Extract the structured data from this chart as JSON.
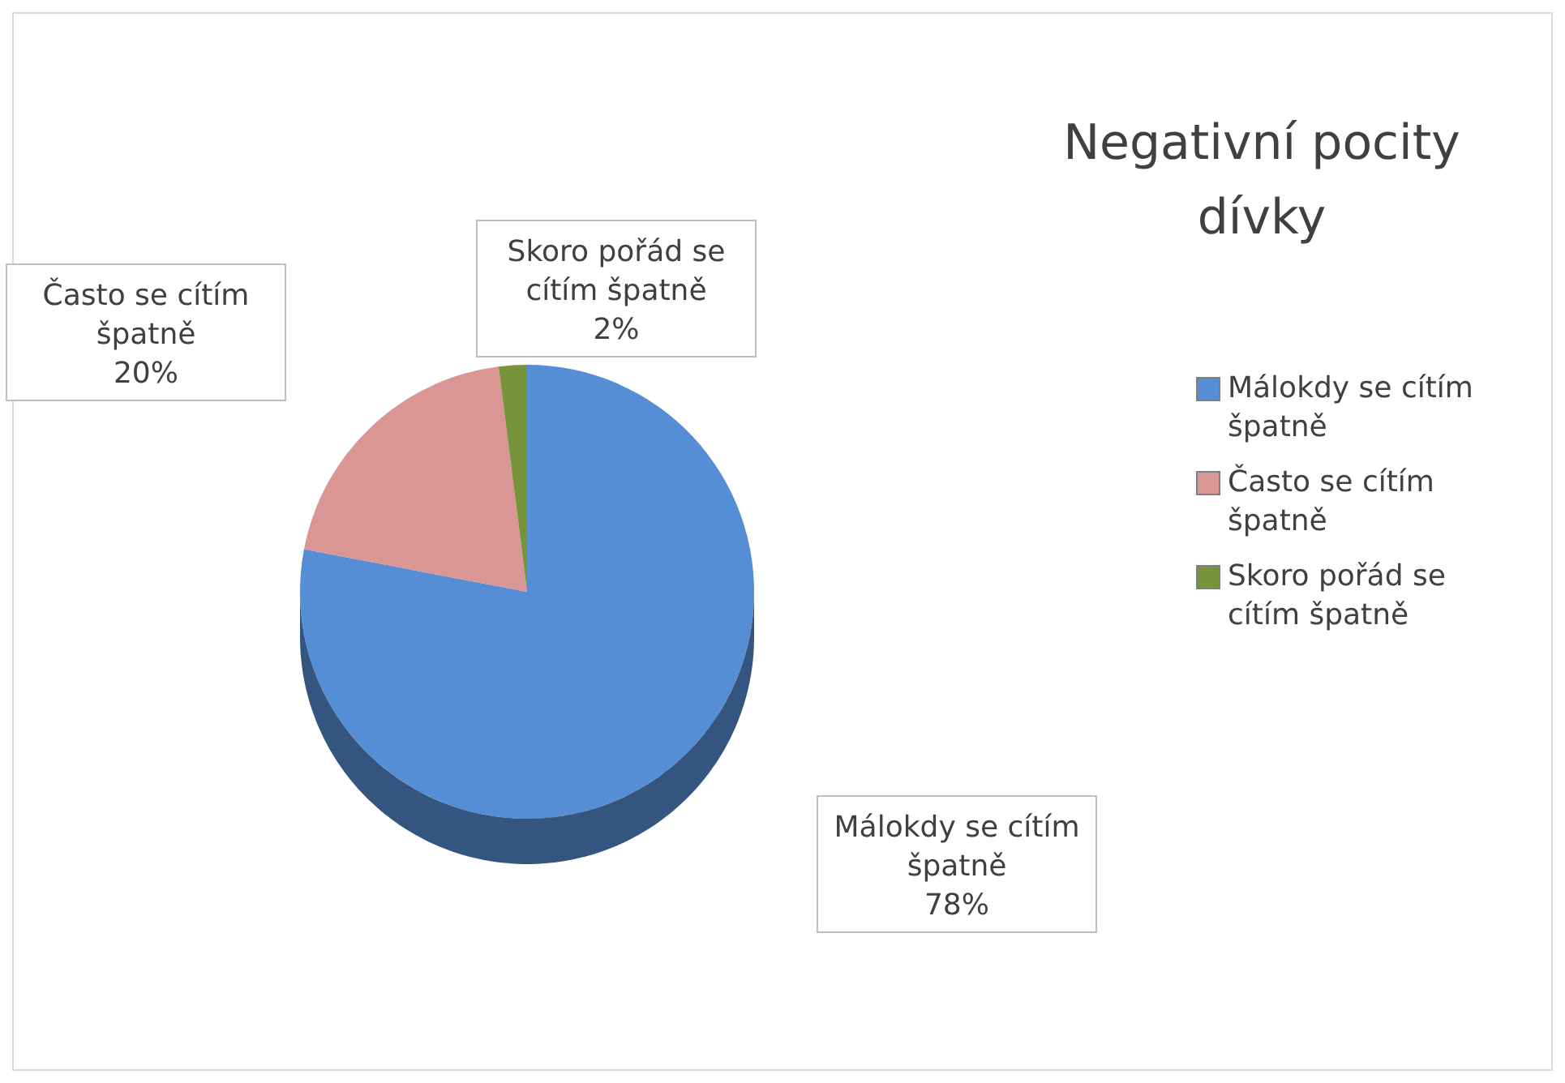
{
  "chart_data": {
    "type": "pie",
    "title": "Negativní pocity dívky",
    "categories": [
      "Málokdy se cítím špatně",
      "Často se cítím špatně",
      "Skoro pořád se cítím špatně"
    ],
    "values": [
      78,
      20,
      2
    ],
    "value_labels": [
      "78%",
      "20%",
      "2%"
    ],
    "colors": [
      "#558ed5",
      "#d99694",
      "#77933c"
    ],
    "legend": "right"
  }
}
